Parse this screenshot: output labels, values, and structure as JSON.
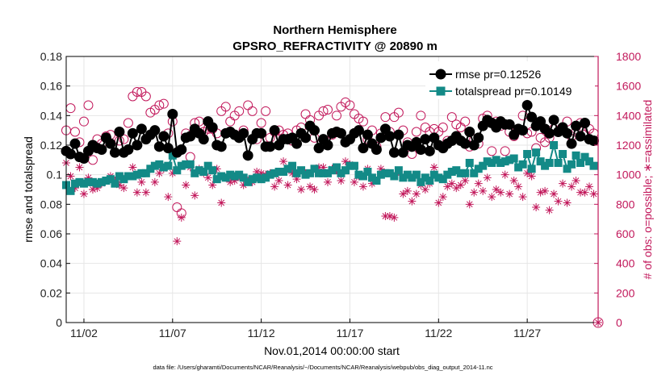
{
  "chart_data": {
    "type": "line",
    "title": "Northern Hemisphere",
    "subtitle": "GPSRO_REFRACTIVITY @ 20890 m",
    "xlabel": "Nov.01,2014 00:00:00 start",
    "ylabel": "rmse and totalspread",
    "y2label": "# of obs: o=possible; ∗=assimilated",
    "footnote": "data file: /Users/gharamti/Documents/NCAR/Reanalysis/~/Documents/NCAR/Reanalysis/webpub/obs_diag_output_2014-11.nc",
    "xlim": [
      0.5,
      30.5
    ],
    "ylim": [
      0,
      0.18
    ],
    "y2lim": [
      0,
      1800
    ],
    "xticks": [
      1.5,
      6.5,
      11.5,
      16.5,
      21.5,
      26.5
    ],
    "xticklabels": [
      "11/02",
      "11/07",
      "11/12",
      "11/17",
      "11/22",
      "11/27"
    ],
    "yticks": [
      0,
      0.02,
      0.04,
      0.06,
      0.08,
      0.1,
      0.12,
      0.14,
      0.16,
      0.18
    ],
    "yticklabels": [
      "0",
      "0.02",
      "0.04",
      "0.06",
      "0.08",
      "0.1",
      "0.12",
      "0.14",
      "0.16",
      "0.18"
    ],
    "y2ticks": [
      0,
      200,
      400,
      600,
      800,
      1000,
      1200,
      1400,
      1600,
      1800
    ],
    "y2ticklabels": [
      "0",
      "200",
      "400",
      "600",
      "800",
      "1000",
      "1200",
      "1400",
      "1600",
      "1800"
    ],
    "legend_position": "top-right",
    "colors": {
      "rmse": "#000000",
      "spread": "#138a87",
      "obs": "#c2185b"
    },
    "series": [
      {
        "name": "rmse",
        "legend": "rmse pr=0.12526",
        "axis": "left",
        "style": "line-circle",
        "start": 0.5,
        "step": 0.25,
        "values": [
          0.116,
          0.114,
          0.121,
          0.112,
          0.111,
          0.116,
          0.12,
          0.118,
          0.117,
          0.125,
          0.121,
          0.115,
          0.129,
          0.115,
          0.117,
          0.128,
          0.12,
          0.131,
          0.124,
          0.127,
          0.13,
          0.119,
          0.126,
          0.118,
          0.141,
          0.115,
          0.117,
          0.125,
          0.126,
          0.131,
          0.128,
          0.124,
          0.136,
          0.132,
          0.12,
          0.119,
          0.128,
          0.129,
          0.127,
          0.125,
          0.128,
          0.113,
          0.124,
          0.128,
          0.128,
          0.119,
          0.119,
          0.13,
          0.12,
          0.124,
          0.124,
          0.125,
          0.121,
          0.128,
          0.125,
          0.133,
          0.13,
          0.118,
          0.124,
          0.12,
          0.128,
          0.129,
          0.128,
          0.122,
          0.124,
          0.128,
          0.13,
          0.118,
          0.127,
          0.121,
          0.117,
          0.125,
          0.131,
          0.126,
          0.115,
          0.127,
          0.115,
          0.12,
          0.119,
          0.122,
          0.117,
          0.124,
          0.116,
          0.125,
          0.12,
          0.118,
          0.121,
          0.123,
          0.126,
          0.123,
          0.121,
          0.129,
          0.12,
          0.125,
          0.133,
          0.137,
          0.135,
          0.132,
          0.136,
          0.134,
          0.134,
          0.127,
          0.131,
          0.13,
          0.147,
          0.139,
          0.133,
          0.136,
          0.131,
          0.128,
          0.137,
          0.129,
          0.132,
          0.128,
          0.121,
          0.133,
          0.126,
          0.135,
          0.124,
          0.123
        ]
      },
      {
        "name": "totalspread",
        "legend": "totalspread pr=0.10149",
        "axis": "left",
        "style": "line-square",
        "start": 0.5,
        "step": 0.25,
        "values": [
          0.093,
          0.089,
          0.094,
          0.095,
          0.094,
          0.095,
          0.095,
          0.094,
          0.095,
          0.096,
          0.097,
          0.094,
          0.099,
          0.097,
          0.099,
          0.099,
          0.1,
          0.101,
          0.101,
          0.104,
          0.106,
          0.107,
          0.105,
          0.106,
          0.113,
          0.103,
          0.106,
          0.107,
          0.107,
          0.101,
          0.103,
          0.102,
          0.106,
          0.103,
          0.097,
          0.099,
          0.098,
          0.1,
          0.099,
          0.1,
          0.098,
          0.095,
          0.097,
          0.098,
          0.097,
          0.098,
          0.1,
          0.101,
          0.102,
          0.102,
          0.104,
          0.106,
          0.101,
          0.103,
          0.1,
          0.101,
          0.104,
          0.101,
          0.101,
          0.101,
          0.103,
          0.105,
          0.101,
          0.103,
          0.106,
          0.106,
          0.1,
          0.099,
          0.102,
          0.098,
          0.096,
          0.1,
          0.101,
          0.101,
          0.099,
          0.103,
          0.098,
          0.1,
          0.098,
          0.1,
          0.095,
          0.098,
          0.096,
          0.1,
          0.098,
          0.097,
          0.1,
          0.102,
          0.103,
          0.101,
          0.101,
          0.108,
          0.101,
          0.104,
          0.106,
          0.109,
          0.108,
          0.11,
          0.108,
          0.109,
          0.11,
          0.111,
          0.105,
          0.107,
          0.114,
          0.104,
          0.115,
          0.109,
          0.106,
          0.108,
          0.12,
          0.108,
          0.114,
          0.104,
          0.107,
          0.113,
          0.108,
          0.112,
          0.109,
          0.106
        ]
      },
      {
        "name": "possible",
        "legend": "o=possible",
        "axis": "right",
        "style": "circle",
        "start": 0.5,
        "step": 0.25,
        "values": [
          1300,
          1450,
          1290,
          1220,
          1360,
          1470,
          1100,
          1240,
          1210,
          1260,
          1270,
          1150,
          1230,
          1240,
          1350,
          1530,
          1560,
          1560,
          1530,
          1420,
          1440,
          1470,
          1480,
          1280,
          1360,
          780,
          740,
          1280,
          1120,
          1350,
          1360,
          1290,
          1310,
          1310,
          1280,
          1430,
          1460,
          1360,
          1400,
          1430,
          1300,
          1470,
          1430,
          1240,
          1350,
          1430,
          1250,
          1290,
          1300,
          1270,
          1280,
          1230,
          1300,
          1320,
          1410,
          1370,
          1250,
          1400,
          1430,
          1440,
          1270,
          1400,
          1460,
          1490,
          1470,
          1410,
          1380,
          1360,
          1240,
          1300,
          1190,
          1280,
          1390,
          1290,
          1390,
          1420,
          1300,
          1220,
          1140,
          1290,
          1400,
          1320,
          1290,
          1310,
          1290,
          1320,
          1230,
          1390,
          1340,
          1320,
          1360,
          1190,
          1240,
          1210,
          1380,
          1400,
          1160,
          1360,
          1330,
          1160,
          1290,
          1260,
          1300,
          1400,
          1280,
          1290,
          1180,
          1250,
          1220,
          1250,
          1310,
          1290,
          1320,
          1360,
          1260,
          1290,
          1350,
          1270,
          1310,
          1280
        ]
      },
      {
        "name": "assimilated",
        "legend": "∗=assimilated",
        "axis": "right",
        "style": "star",
        "start": 0.5,
        "step": 0.25,
        "values": [
          1080,
          990,
          910,
          1050,
          870,
          980,
          900,
          910,
          940,
          960,
          990,
          960,
          930,
          910,
          990,
          1050,
          880,
          950,
          880,
          1040,
          950,
          1010,
          1040,
          850,
          1010,
          550,
          710,
          930,
          1050,
          860,
          1040,
          1010,
          980,
          930,
          1040,
          810,
          980,
          950,
          960,
          990,
          930,
          960,
          950,
          1020,
          1010,
          1000,
          1010,
          920,
          960,
          1090,
          930,
          1010,
          970,
          900,
          1010,
          920,
          900,
          1050,
          1050,
          950,
          1040,
          1030,
          960,
          1090,
          1070,
          950,
          990,
          920,
          1040,
          940,
          960,
          1040,
          720,
          720,
          710,
          1020,
          870,
          890,
          820,
          870,
          930,
          900,
          940,
          1050,
          810,
          850,
          920,
          940,
          910,
          930,
          960,
          800,
          880,
          940,
          890,
          980,
          850,
          900,
          880,
          1000,
          870,
          960,
          920,
          850,
          1010,
          990,
          780,
          880,
          890,
          760,
          870,
          820,
          940,
          810,
          920,
          960,
          880,
          880,
          920,
          870
        ]
      }
    ]
  }
}
